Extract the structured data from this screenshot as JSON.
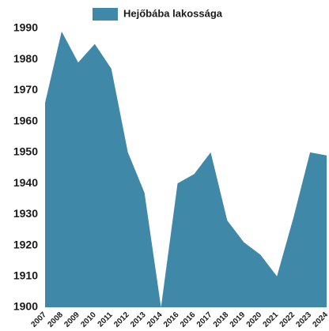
{
  "chart_data": {
    "type": "area",
    "categories": [
      "2007",
      "2008",
      "2009",
      "2010",
      "2011",
      "2012",
      "2013",
      "2014",
      "2016",
      "2016",
      "2017",
      "2018",
      "2019",
      "2020",
      "2021",
      "2022",
      "2023",
      "2024"
    ],
    "series": [
      {
        "name": "Hejőbába lakossága",
        "color": "#3f88a8",
        "values": [
          1966,
          1989,
          1979,
          1985,
          1977,
          1950,
          1937,
          1900,
          1940,
          1943,
          1950,
          1928,
          1921,
          1917,
          1910,
          1929,
          1950,
          1949
        ]
      }
    ],
    "ylim": [
      1900,
      1990
    ],
    "yticks": [
      1900,
      1910,
      1920,
      1930,
      1940,
      1950,
      1960,
      1970,
      1980,
      1990
    ],
    "grid": false,
    "legend": "top"
  }
}
